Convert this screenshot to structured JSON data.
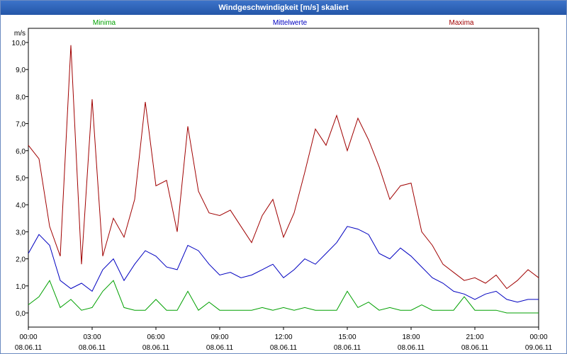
{
  "window": {
    "title": "Windgeschwindigkeit [m/s] skaliert"
  },
  "colors": {
    "min": "#00a000",
    "mean": "#0000c0",
    "max": "#a00000",
    "grid": "#000000",
    "axis": "#000000"
  },
  "chart_data": {
    "type": "line",
    "title": "Windgeschwindigkeit [m/s] skaliert",
    "ylabel": "m/s",
    "ylim": [
      0,
      10
    ],
    "yticks": [
      "0,0",
      "1,0",
      "2,0",
      "3,0",
      "4,0",
      "5,0",
      "6,0",
      "7,0",
      "8,0",
      "9,0",
      "10,0"
    ],
    "xlim_hours": [
      0,
      24
    ],
    "xticks": [
      {
        "time": "00:00",
        "date": "08.06.11"
      },
      {
        "time": "03:00",
        "date": "08.06.11"
      },
      {
        "time": "06:00",
        "date": "08.06.11"
      },
      {
        "time": "09:00",
        "date": "08.06.11"
      },
      {
        "time": "12:00",
        "date": "08.06.11"
      },
      {
        "time": "15:00",
        "date": "08.06.11"
      },
      {
        "time": "18:00",
        "date": "08.06.11"
      },
      {
        "time": "21:00",
        "date": "08.06.11"
      },
      {
        "time": "00:00",
        "date": "09.06.11"
      }
    ],
    "grid": true,
    "legend": "top",
    "series": [
      {
        "name": "Minima",
        "x": [
          0,
          0.5,
          1,
          1.5,
          2,
          2.5,
          3,
          3.5,
          4,
          4.5,
          5,
          5.5,
          6,
          6.5,
          7,
          7.5,
          8,
          8.5,
          9,
          9.5,
          10,
          10.5,
          11,
          11.5,
          12,
          12.5,
          13,
          13.5,
          14,
          14.5,
          15,
          15.5,
          16,
          16.5,
          17,
          17.5,
          18,
          18.5,
          19,
          19.5,
          20,
          20.5,
          21,
          21.5,
          22,
          22.5,
          23,
          23.5,
          24
        ],
        "y": [
          0.3,
          0.6,
          1.2,
          0.2,
          0.5,
          0.1,
          0.2,
          0.8,
          1.2,
          0.2,
          0.1,
          0.1,
          0.5,
          0.1,
          0.1,
          0.8,
          0.1,
          0.4,
          0.1,
          0.1,
          0.1,
          0.1,
          0.2,
          0.1,
          0.2,
          0.1,
          0.2,
          0.1,
          0.1,
          0.1,
          0.8,
          0.2,
          0.4,
          0.1,
          0.2,
          0.1,
          0.1,
          0.3,
          0.1,
          0.1,
          0.1,
          0.6,
          0.1,
          0.1,
          0.1,
          0.0,
          0.0,
          0.0,
          0.0
        ]
      },
      {
        "name": "Mittelwerte",
        "x": [
          0,
          0.5,
          1,
          1.5,
          2,
          2.5,
          3,
          3.5,
          4,
          4.5,
          5,
          5.5,
          6,
          6.5,
          7,
          7.5,
          8,
          8.5,
          9,
          9.5,
          10,
          10.5,
          11,
          11.5,
          12,
          12.5,
          13,
          13.5,
          14,
          14.5,
          15,
          15.5,
          16,
          16.5,
          17,
          17.5,
          18,
          18.5,
          19,
          19.5,
          20,
          20.5,
          21,
          21.5,
          22,
          22.5,
          23,
          23.5,
          24
        ],
        "y": [
          2.2,
          2.9,
          2.5,
          1.2,
          0.9,
          1.1,
          0.8,
          1.6,
          2.0,
          1.2,
          1.8,
          2.3,
          2.1,
          1.7,
          1.6,
          2.5,
          2.3,
          1.8,
          1.4,
          1.5,
          1.3,
          1.4,
          1.6,
          1.8,
          1.3,
          1.6,
          2.0,
          1.8,
          2.2,
          2.6,
          3.2,
          3.1,
          2.9,
          2.2,
          2.0,
          2.4,
          2.1,
          1.7,
          1.3,
          1.1,
          0.8,
          0.7,
          0.5,
          0.7,
          0.8,
          0.5,
          0.4,
          0.5,
          0.5
        ]
      },
      {
        "name": "Maxima",
        "x": [
          0,
          0.5,
          1,
          1.5,
          2,
          2.5,
          3,
          3.5,
          4,
          4.5,
          5,
          5.5,
          6,
          6.5,
          7,
          7.5,
          8,
          8.5,
          9,
          9.5,
          10,
          10.5,
          11,
          11.5,
          12,
          12.5,
          13,
          13.5,
          14,
          14.5,
          15,
          15.5,
          16,
          16.5,
          17,
          17.5,
          18,
          18.5,
          19,
          19.5,
          20,
          20.5,
          21,
          21.5,
          22,
          22.5,
          23,
          23.5,
          24
        ],
        "y": [
          6.2,
          5.7,
          3.2,
          2.1,
          9.9,
          1.8,
          7.9,
          2.1,
          3.5,
          2.8,
          4.2,
          7.8,
          4.7,
          4.9,
          3.0,
          6.9,
          4.5,
          3.7,
          3.6,
          3.8,
          3.2,
          2.6,
          3.6,
          4.2,
          2.8,
          3.7,
          5.2,
          6.8,
          6.2,
          7.3,
          6.0,
          7.2,
          6.4,
          5.4,
          4.2,
          4.7,
          4.8,
          3.0,
          2.5,
          1.8,
          1.5,
          1.2,
          1.3,
          1.1,
          1.4,
          0.9,
          1.2,
          1.6,
          1.3
        ]
      }
    ]
  }
}
